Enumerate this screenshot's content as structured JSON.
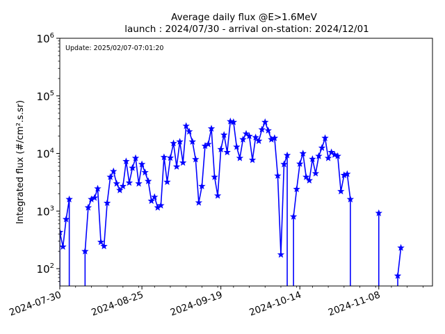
{
  "chart_data": {
    "type": "line",
    "title_line1": "Average daily flux @E>1.6MeV",
    "title_line2": "launch : 2024/07/30 - arrival on-station: 2024/12/01",
    "annotation": "Update: 2025/02/07-07:01:20",
    "ylabel": "Integrated flux (#/cm².s.sr)",
    "yscale": "log",
    "ylim": [
      50,
      1000000
    ],
    "y_ticks": [
      {
        "value": 100,
        "base": "10",
        "exp": "2"
      },
      {
        "value": 1000,
        "base": "10",
        "exp": "3"
      },
      {
        "value": 10000,
        "base": "10",
        "exp": "4"
      },
      {
        "value": 100000,
        "base": "10",
        "exp": "5"
      },
      {
        "value": 1000000,
        "base": "10",
        "exp": "6"
      }
    ],
    "xlim": [
      "2024-07-30",
      "2024-11-25"
    ],
    "x_ticks": [
      "2024-07-30",
      "2024-08-25",
      "2024-09-19",
      "2024-10-14",
      "2024-11-08"
    ],
    "color": "#0000ff",
    "marker": "star",
    "series": [
      {
        "points": [
          [
            "2024-07-30",
            430
          ],
          [
            "2024-07-31",
            240
          ],
          [
            "2024-08-01",
            720
          ],
          [
            "2024-08-02",
            1600
          ],
          [
            "2024-08-07",
            200
          ],
          [
            "2024-08-08",
            1150
          ],
          [
            "2024-08-09",
            1600
          ],
          [
            "2024-08-10",
            1700
          ],
          [
            "2024-08-11",
            2450
          ],
          [
            "2024-08-12",
            290
          ],
          [
            "2024-08-13",
            245
          ],
          [
            "2024-08-14",
            1380
          ],
          [
            "2024-08-15",
            3900
          ],
          [
            "2024-08-16",
            4900
          ],
          [
            "2024-08-17",
            3000
          ],
          [
            "2024-08-18",
            2300
          ],
          [
            "2024-08-19",
            2700
          ],
          [
            "2024-08-20",
            7300
          ],
          [
            "2024-08-21",
            3100
          ],
          [
            "2024-08-22",
            5600
          ],
          [
            "2024-08-23",
            8300
          ],
          [
            "2024-08-24",
            3000
          ],
          [
            "2024-08-25",
            6500
          ],
          [
            "2024-08-26",
            4700
          ],
          [
            "2024-08-27",
            3300
          ],
          [
            "2024-08-28",
            1500
          ],
          [
            "2024-08-29",
            1750
          ],
          [
            "2024-08-30",
            1150
          ],
          [
            "2024-08-31",
            1250
          ],
          [
            "2024-09-01",
            8600
          ],
          [
            "2024-09-02",
            3200
          ],
          [
            "2024-09-03",
            8400
          ],
          [
            "2024-09-04",
            15000
          ],
          [
            "2024-09-05",
            5900
          ],
          [
            "2024-09-06",
            16000
          ],
          [
            "2024-09-07",
            6900
          ],
          [
            "2024-09-08",
            30000
          ],
          [
            "2024-09-09",
            24000
          ],
          [
            "2024-09-10",
            16000
          ],
          [
            "2024-09-11",
            7900
          ],
          [
            "2024-09-12",
            1400
          ],
          [
            "2024-09-13",
            2700
          ],
          [
            "2024-09-14",
            13500
          ],
          [
            "2024-09-15",
            14500
          ],
          [
            "2024-09-16",
            27000
          ],
          [
            "2024-09-17",
            3900
          ],
          [
            "2024-09-18",
            1850
          ],
          [
            "2024-09-19",
            11800
          ],
          [
            "2024-09-20",
            21000
          ],
          [
            "2024-09-21",
            10500
          ],
          [
            "2024-09-22",
            36000
          ],
          [
            "2024-09-23",
            35000
          ],
          [
            "2024-09-24",
            13000
          ],
          [
            "2024-09-25",
            8300
          ],
          [
            "2024-09-26",
            17500
          ],
          [
            "2024-09-27",
            22000
          ],
          [
            "2024-09-28",
            20000
          ],
          [
            "2024-09-29",
            7700
          ],
          [
            "2024-09-30",
            19000
          ],
          [
            "2024-10-01",
            16500
          ],
          [
            "2024-10-02",
            26000
          ],
          [
            "2024-10-03",
            35000
          ],
          [
            "2024-10-04",
            25000
          ],
          [
            "2024-10-05",
            17500
          ],
          [
            "2024-10-06",
            18500
          ],
          [
            "2024-10-07",
            4100
          ],
          [
            "2024-10-08",
            175
          ],
          [
            "2024-10-09",
            6500
          ],
          [
            "2024-10-10",
            9300
          ],
          [
            "2024-10-12",
            800
          ],
          [
            "2024-10-13",
            2400
          ],
          [
            "2024-10-14",
            6600
          ],
          [
            "2024-10-15",
            10000
          ],
          [
            "2024-10-16",
            3900
          ],
          [
            "2024-10-17",
            3400
          ],
          [
            "2024-10-18",
            8000
          ],
          [
            "2024-10-19",
            4500
          ],
          [
            "2024-10-20",
            9000
          ],
          [
            "2024-10-21",
            12500
          ],
          [
            "2024-10-22",
            18500
          ],
          [
            "2024-10-23",
            8300
          ],
          [
            "2024-10-24",
            10500
          ],
          [
            "2024-10-25",
            9500
          ],
          [
            "2024-10-26",
            9000
          ],
          [
            "2024-10-27",
            2200
          ],
          [
            "2024-10-28",
            4200
          ],
          [
            "2024-10-29",
            4400
          ],
          [
            "2024-10-30",
            1600
          ],
          [
            "2024-11-08",
            920
          ],
          [
            "2024-11-14",
            75
          ],
          [
            "2024-11-15",
            230
          ]
        ],
        "drops": [
          "2024-07-30",
          "2024-08-02",
          "2024-08-07",
          "2024-10-10",
          "2024-10-12",
          "2024-10-30",
          "2024-11-08",
          "2024-11-14"
        ]
      }
    ]
  }
}
